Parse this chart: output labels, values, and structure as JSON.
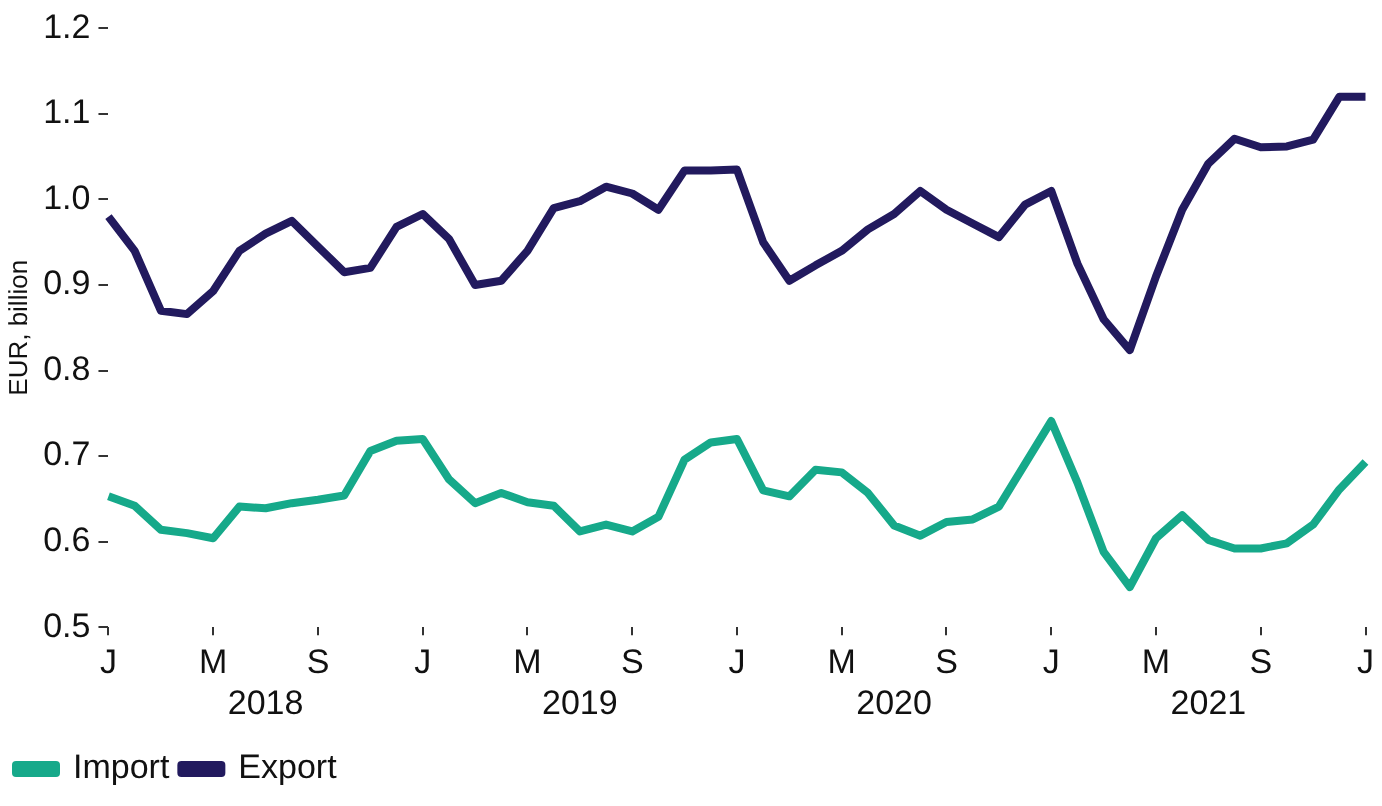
{
  "chart_data": {
    "type": "line",
    "ylabel": "EUR, billion",
    "categories": [
      "J",
      null,
      null,
      null,
      "M",
      null,
      null,
      null,
      "S",
      null,
      null,
      null,
      "J",
      null,
      null,
      null,
      "M",
      null,
      null,
      null,
      "S",
      null,
      null,
      null,
      "J",
      null,
      null,
      null,
      "M",
      null,
      null,
      null,
      "S",
      null,
      null,
      null,
      "J",
      null,
      null,
      null,
      "M",
      null,
      null,
      null,
      "S",
      null,
      null,
      null,
      "J"
    ],
    "series": [
      {
        "name": "Import",
        "color": "#16a98a",
        "values": [
          0.653,
          0.642,
          0.614,
          0.61,
          0.604,
          0.641,
          0.639,
          0.645,
          0.649,
          0.654,
          0.706,
          0.718,
          0.72,
          0.673,
          0.645,
          0.657,
          0.646,
          0.642,
          0.612,
          0.62,
          0.612,
          0.629,
          0.696,
          0.716,
          0.72,
          0.66,
          0.653,
          0.684,
          0.681,
          0.657,
          0.619,
          0.607,
          0.623,
          0.626,
          0.641,
          0.691,
          0.741,
          0.669,
          0.588,
          0.547,
          0.604,
          0.631,
          0.602,
          0.592,
          0.592,
          0.598,
          0.62,
          0.661,
          0.693
        ]
      },
      {
        "name": "Export",
        "color": "#221a5e",
        "values": [
          0.98,
          0.94,
          0.87,
          0.866,
          0.893,
          0.94,
          0.96,
          0.975,
          0.945,
          0.915,
          0.92,
          0.968,
          0.983,
          0.954,
          0.9,
          0.905,
          0.94,
          0.99,
          0.998,
          1.015,
          1.007,
          0.988,
          1.034,
          1.034,
          1.035,
          0.95,
          0.905,
          0.923,
          0.94,
          0.965,
          0.983,
          1.01,
          0.988,
          0.972,
          0.956,
          0.994,
          1.01,
          0.925,
          0.86,
          0.824,
          0.91,
          0.988,
          1.042,
          1.071,
          1.061,
          1.062,
          1.07,
          1.12,
          1.12
        ]
      }
    ],
    "annotations": [
      "2018",
      "2019",
      "2020",
      "2021"
    ],
    "ylim": [
      0.5,
      1.2
    ],
    "yticks": [
      0.5,
      0.6,
      0.7,
      0.8,
      0.9,
      {
        "value": 1.0,
        "label": "1.0"
      },
      1.1,
      1.2
    ],
    "grid": false,
    "legend": "bottom left",
    "marker": "none",
    "line_style": "solid"
  }
}
